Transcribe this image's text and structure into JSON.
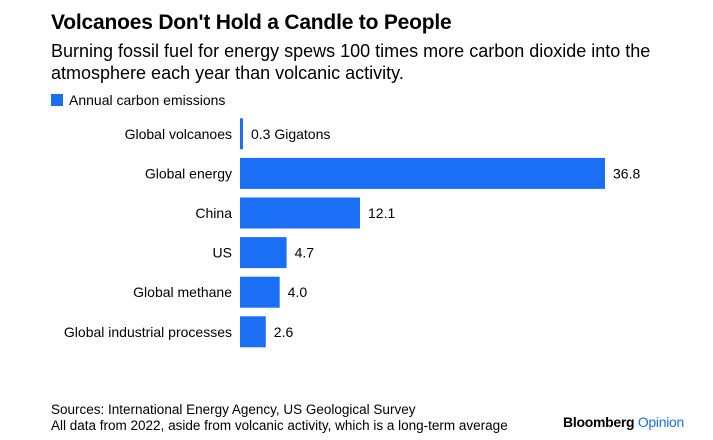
{
  "chart_data": {
    "type": "bar",
    "orientation": "horizontal",
    "title": "Volcanoes Don't Hold a Candle to People",
    "subtitle": "Burning fossil fuel for energy spews 100 times more carbon dioxide into the atmosphere each year than volcanic activity.",
    "legend": {
      "entries": [
        "Annual carbon emissions"
      ],
      "placement": "top-left"
    },
    "series": [
      {
        "name": "Annual carbon emissions",
        "color": "#1a6ff5"
      }
    ],
    "categories": [
      "Global volcanoes",
      "Global energy",
      "China",
      "US",
      "Global methane",
      "Global industrial processes"
    ],
    "values": [
      0.3,
      36.8,
      12.1,
      4.7,
      4.0,
      2.6
    ],
    "value_labels": [
      "0.3 Gigatons",
      "36.8",
      "12.1",
      "4.7",
      "4.0",
      "2.6"
    ],
    "xlim": [
      0,
      36.8
    ],
    "grid": false
  },
  "footer": {
    "sources": "Sources: International Energy Agency, US Geological Survey",
    "note": "All data from 2022, aside from volcanic activity, which is a long-term average"
  },
  "brand": {
    "name": "Bloomberg",
    "section": "Opinion"
  }
}
